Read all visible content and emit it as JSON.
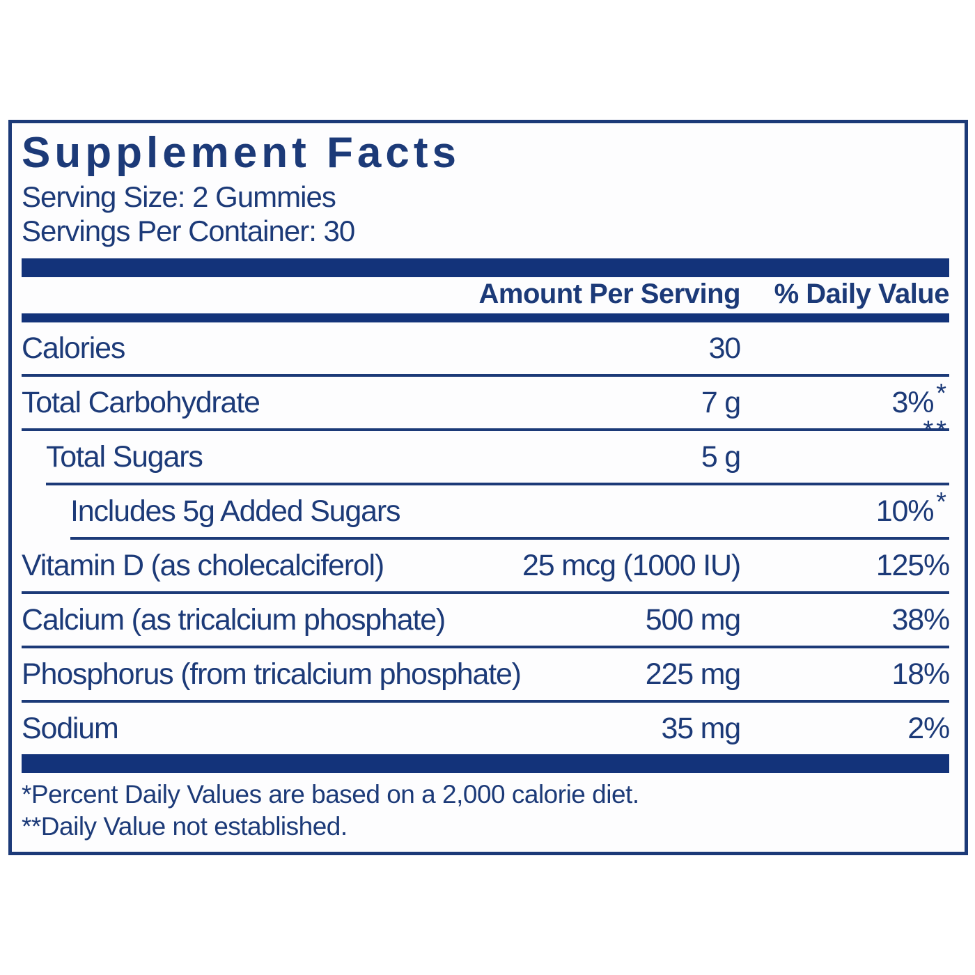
{
  "label": {
    "title": "Supplement Facts",
    "serving_size": "Serving Size: 2 Gummies",
    "servings_per_container": "Servings Per Container: 30",
    "columns": {
      "amount": "Amount Per Serving",
      "dv": "% Daily Value"
    },
    "rows": [
      {
        "name": "Calories",
        "amount": "30",
        "dv": ""
      },
      {
        "name": "Total Carbohydrate",
        "amount": "7 g",
        "dv": "3%",
        "dv_note": "*"
      },
      {
        "name": "Total Sugars",
        "amount": "5 g",
        "dv": "",
        "dv_note": "**"
      },
      {
        "name": "Includes 5g Added Sugars",
        "amount": "",
        "dv": "10%",
        "dv_note": "*"
      },
      {
        "name": "Vitamin D (as cholecalciferol)",
        "amount": "25 mcg (1000 IU)",
        "dv": "125%"
      },
      {
        "name": "Calcium (as tricalcium phosphate)",
        "amount": "500 mg",
        "dv": "38%"
      },
      {
        "name": "Phosphorus (from tricalcium phosphate)",
        "amount": "225 mg",
        "dv": "18%"
      },
      {
        "name": "Sodium",
        "amount": "35 mg",
        "dv": "2%"
      }
    ],
    "footnotes": [
      "*Percent Daily Values are based on a 2,000 calorie diet.",
      "**Daily Value not established."
    ],
    "colors": {
      "navy_text": "#1c3a78",
      "navy_bar": "#13337a",
      "background": "#ffffff"
    }
  }
}
